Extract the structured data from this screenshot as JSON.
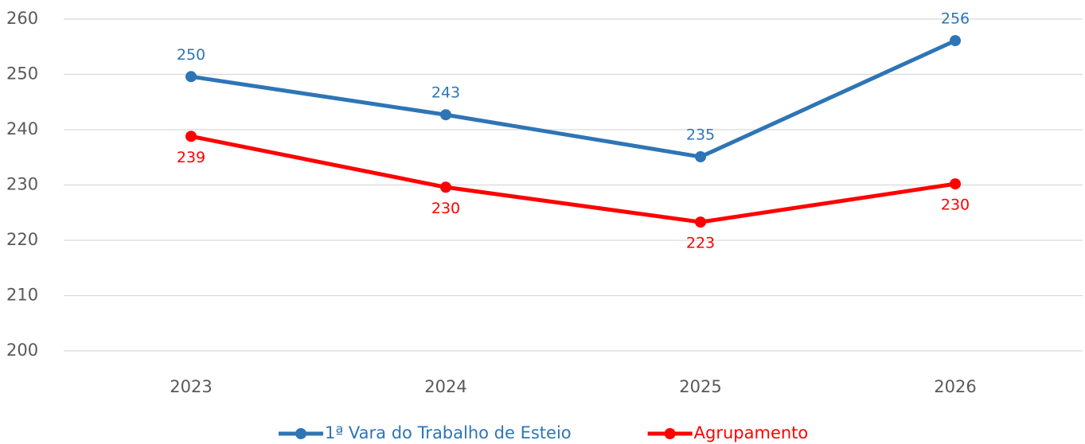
{
  "chart_data": {
    "type": "line",
    "categories": [
      "2023",
      "2024",
      "2025",
      "2026"
    ],
    "series": [
      {
        "name": "1ª Vara do Trabalho de Esteio",
        "color": "#2e75b6",
        "values": [
          249.6,
          242.7,
          235.1,
          256.1
        ],
        "value_labels": [
          250,
          243,
          235,
          256
        ]
      },
      {
        "name": "Agrupamento",
        "color": "#ff0000",
        "values": [
          238.8,
          229.6,
          223.3,
          230.2
        ],
        "value_labels": [
          239,
          230,
          223,
          230
        ]
      }
    ],
    "ylim": [
      200,
      260
    ],
    "yticks": [
      200,
      210,
      220,
      230,
      240,
      250,
      260
    ],
    "grid": true,
    "legend": "bottom"
  }
}
